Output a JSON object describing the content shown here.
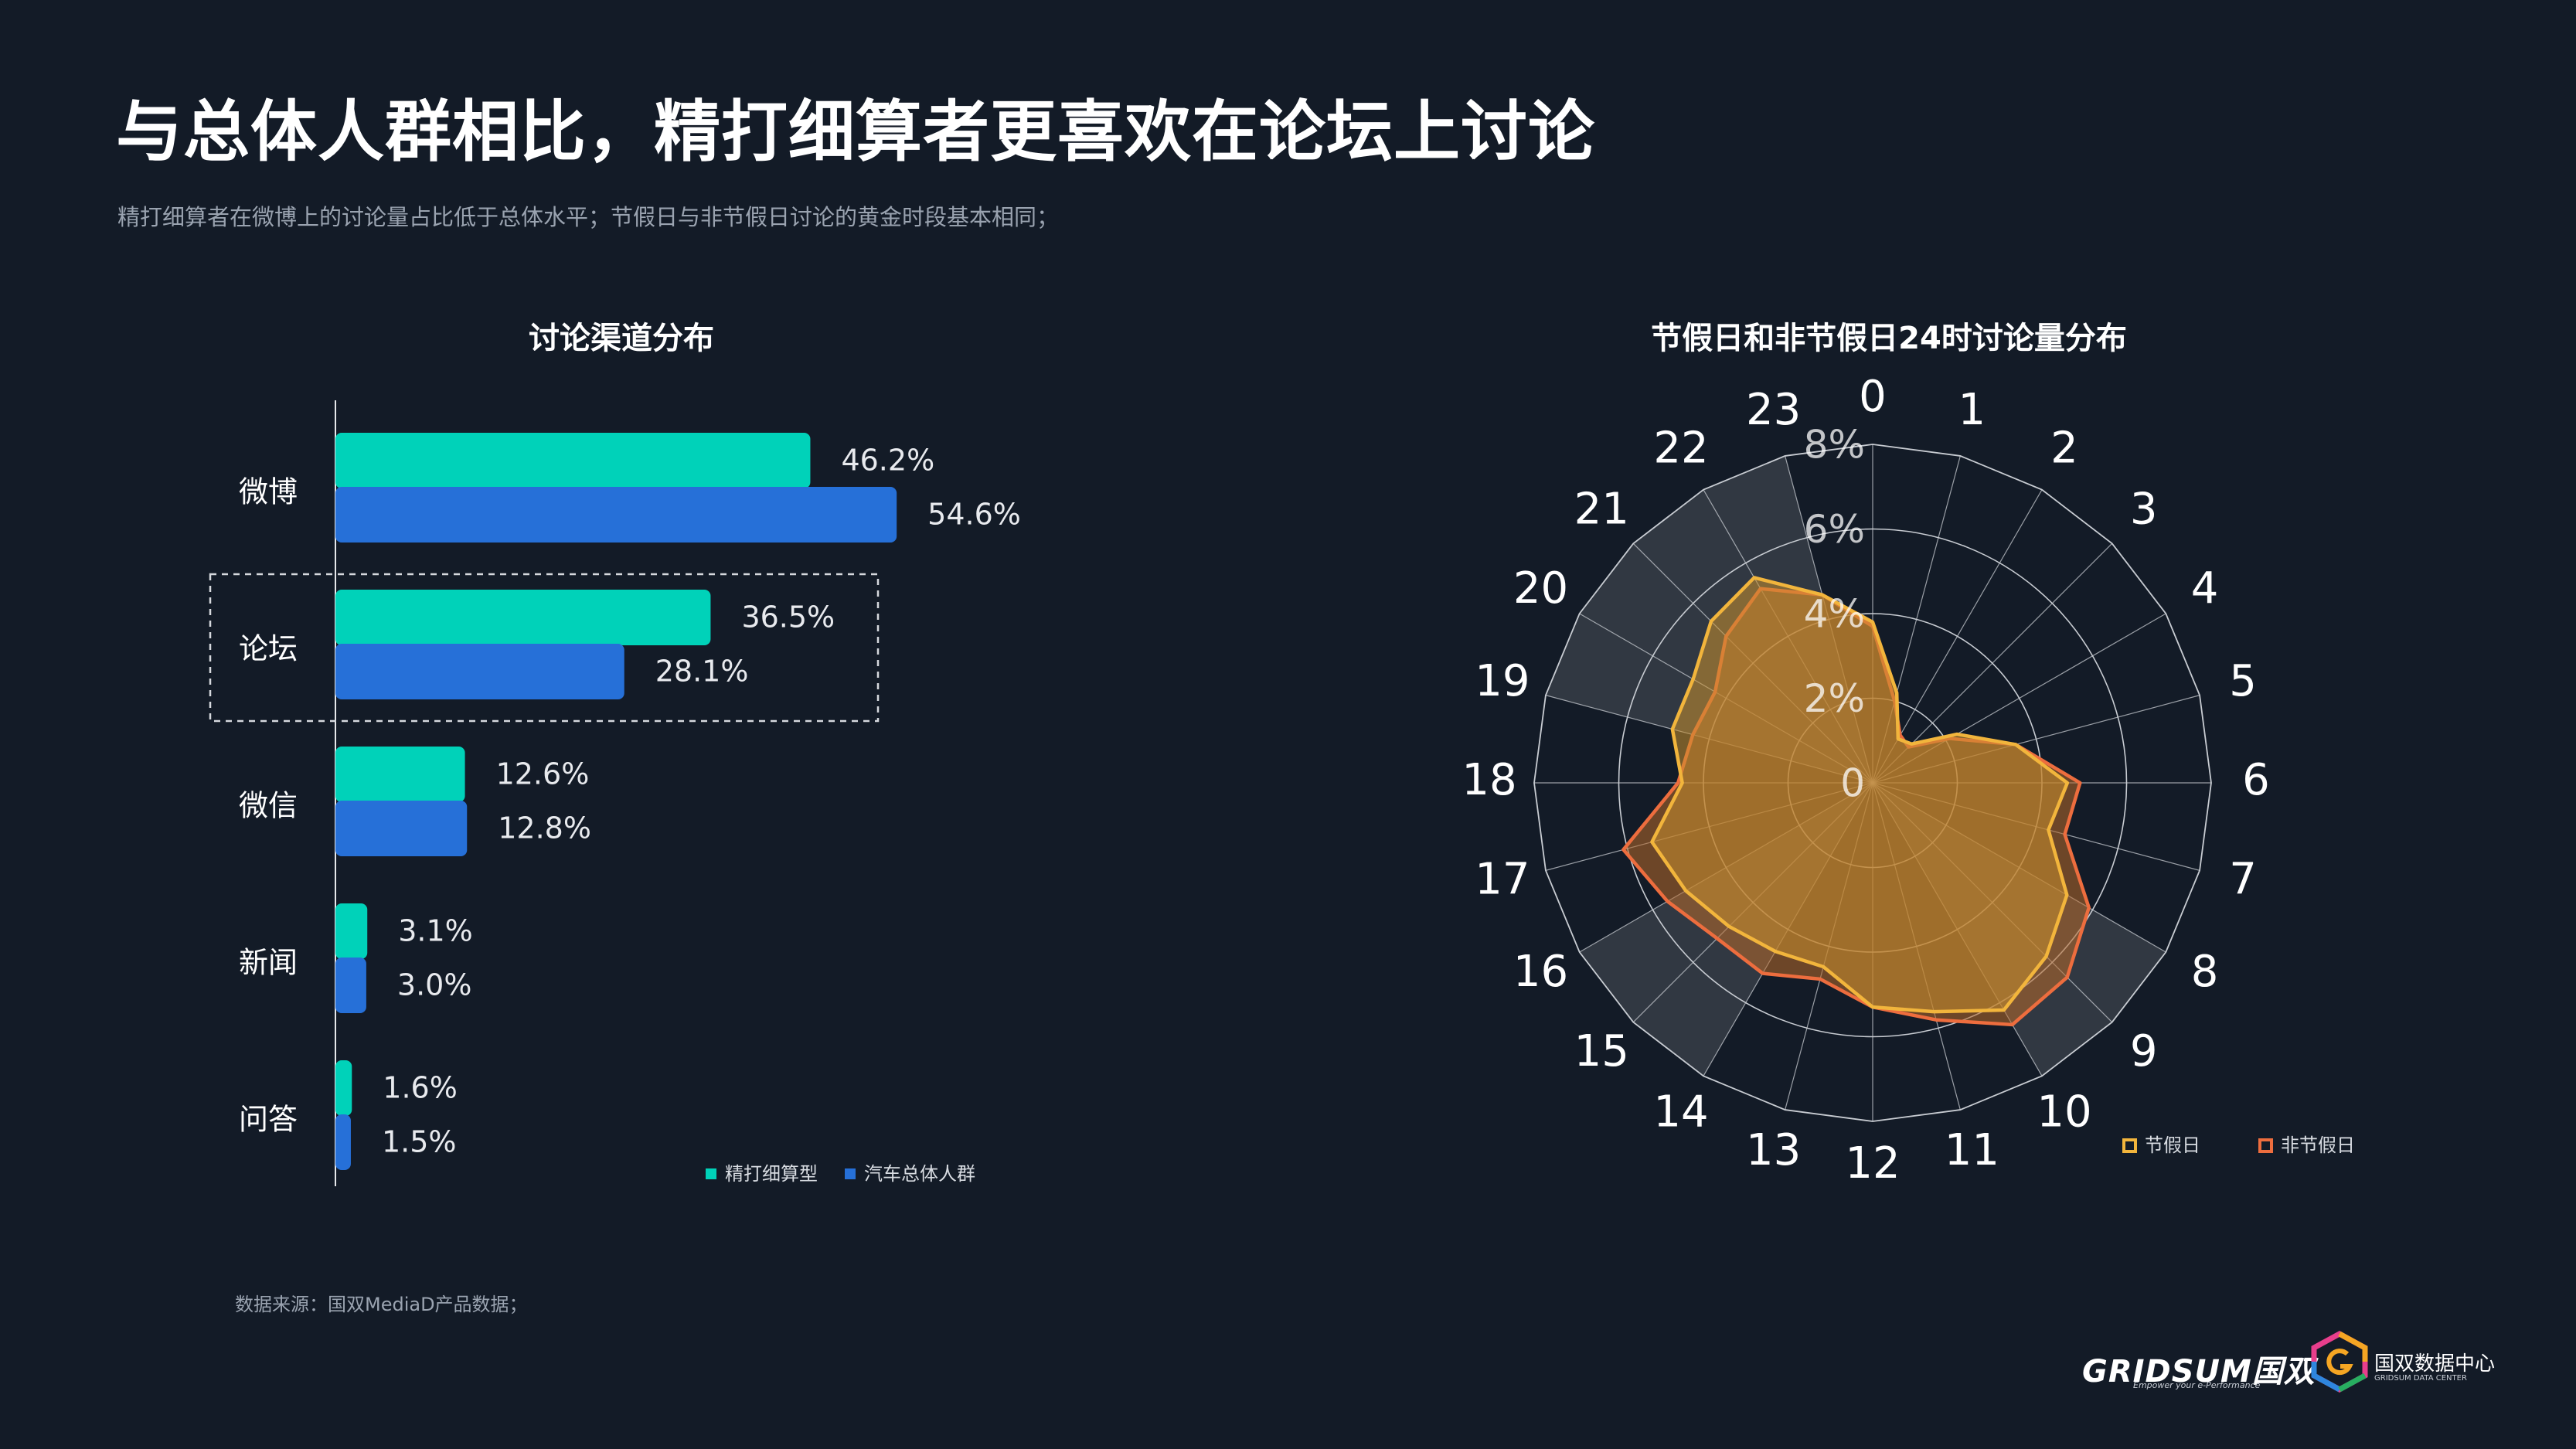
{
  "header": {
    "title": "与总体人群相比，精打细算者更喜欢在论坛上讨论",
    "subtitle": "精打细算者在微博上的讨论量占比低于总体水平；节假日与非节假日讨论的黄金时段基本相同；"
  },
  "footer": {
    "source": "数据来源：国双MediaD产品数据；",
    "logo_brand": "GRIDSUM国双",
    "logo_tagline": "Empower your e-Performance",
    "datacenter_name": "国双数据中心",
    "datacenter_sub": "GRIDSUM DATA CENTER"
  },
  "colors": {
    "background": "#131b27",
    "teal": "#00d2b9",
    "blue": "#2670d8",
    "holiday": "#f2b53c",
    "nonholiday": "#ed6d3e",
    "grid": "#c8ccd2"
  },
  "chart_data": [
    {
      "type": "bar",
      "orientation": "horizontal",
      "title": "讨论渠道分布",
      "categories": [
        "微博",
        "论坛",
        "微信",
        "新闻",
        "问答"
      ],
      "series": [
        {
          "name": "精打细算型",
          "values": [
            46.2,
            36.5,
            12.6,
            3.1,
            1.6
          ],
          "labels": [
            "46.2%",
            "36.5%",
            "12.6%",
            "3.1%",
            "1.6%"
          ],
          "color": "#00d2b9"
        },
        {
          "name": "汽车总体人群",
          "values": [
            54.6,
            28.1,
            12.8,
            3.0,
            1.5
          ],
          "labels": [
            "54.6%",
            "28.1%",
            "12.8%",
            "3.0%",
            "1.5%"
          ],
          "color": "#2670d8"
        }
      ],
      "highlighted_category": "论坛",
      "legend_position": "bottom-right"
    },
    {
      "type": "radar",
      "title": "节假日和非节假日24时讨论量分布",
      "categories": [
        "0",
        "1",
        "2",
        "3",
        "4",
        "5",
        "6",
        "7",
        "8",
        "9",
        "10",
        "11",
        "12",
        "13",
        "14",
        "15",
        "16",
        "17",
        "18",
        "19",
        "20",
        "21",
        "22",
        "23"
      ],
      "radial_ticks": [
        "0",
        "2%",
        "4%",
        "6%",
        "8%"
      ],
      "rlim": [
        0,
        8
      ],
      "highlighted_sectors": [
        [
          19,
          23
        ],
        [
          8,
          10
        ],
        [
          14,
          16
        ]
      ],
      "series": [
        {
          "name": "节假日",
          "color": "#f2b53c",
          "values": [
            3.8,
            2.2,
            1.2,
            1.3,
            2.3,
            3.5,
            4.6,
            4.3,
            5.3,
            5.8,
            6.2,
            5.6,
            5.3,
            4.5,
            4.6,
            4.8,
            5.1,
            5.4,
            4.5,
            4.9,
            4.9,
            5.4,
            5.6,
            4.6
          ]
        },
        {
          "name": "非节假日",
          "color": "#ed6d3e",
          "values": [
            3.7,
            2.0,
            1.3,
            1.2,
            2.1,
            3.5,
            4.9,
            4.7,
            5.9,
            6.5,
            6.6,
            5.8,
            5.3,
            4.8,
            5.2,
            5.2,
            5.6,
            6.1,
            4.6,
            4.4,
            4.3,
            4.9,
            5.3,
            4.6
          ]
        }
      ],
      "legend_position": "bottom-right"
    }
  ]
}
